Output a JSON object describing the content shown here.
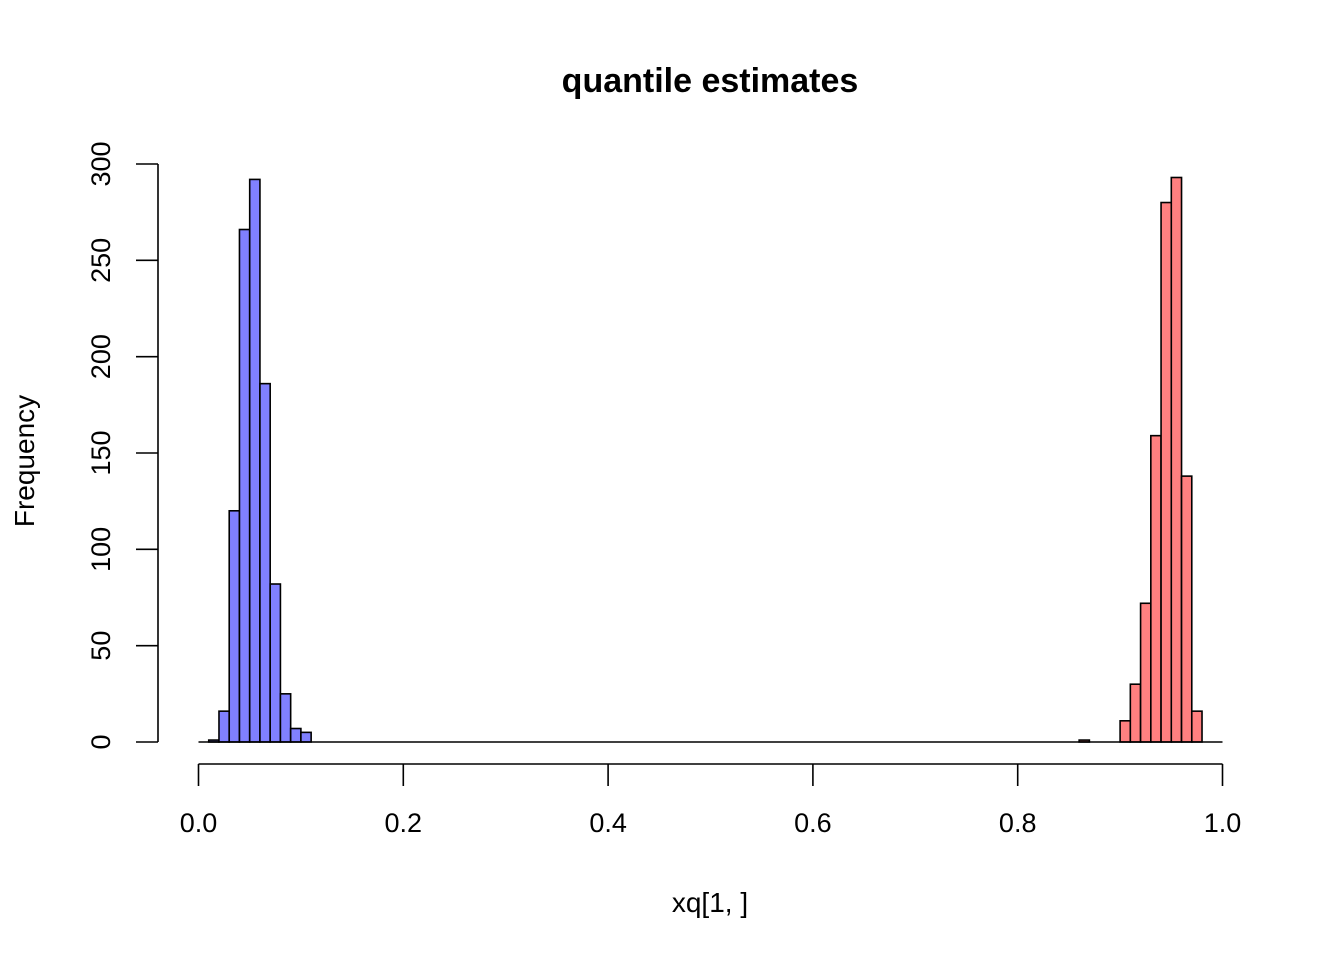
{
  "chart_data": {
    "type": "bar",
    "title": "quantile estimates",
    "xlabel": "xq[1, ]",
    "ylabel": "Frequency",
    "xlim": [
      0,
      1
    ],
    "ylim": [
      0,
      300
    ],
    "bin_width": 0.01,
    "x_ticks": [
      "0.0",
      "0.2",
      "0.4",
      "0.6",
      "0.8",
      "1.0"
    ],
    "y_ticks": [
      "0",
      "50",
      "100",
      "150",
      "200",
      "250",
      "300"
    ],
    "grid": false,
    "legend": "none",
    "series": [
      {
        "color": "#8080ff",
        "bins": [
          {
            "start": 0.01,
            "end": 0.02,
            "count": 1
          },
          {
            "start": 0.02,
            "end": 0.03,
            "count": 16
          },
          {
            "start": 0.03,
            "end": 0.04,
            "count": 120
          },
          {
            "start": 0.04,
            "end": 0.05,
            "count": 266
          },
          {
            "start": 0.05,
            "end": 0.06,
            "count": 292
          },
          {
            "start": 0.06,
            "end": 0.07,
            "count": 186
          },
          {
            "start": 0.07,
            "end": 0.08,
            "count": 82
          },
          {
            "start": 0.08,
            "end": 0.09,
            "count": 25
          },
          {
            "start": 0.09,
            "end": 0.1,
            "count": 7
          },
          {
            "start": 0.1,
            "end": 0.11,
            "count": 5
          }
        ]
      },
      {
        "color": "#ff8080",
        "bins": [
          {
            "start": 0.86,
            "end": 0.87,
            "count": 1
          },
          {
            "start": 0.9,
            "end": 0.91,
            "count": 11
          },
          {
            "start": 0.91,
            "end": 0.92,
            "count": 30
          },
          {
            "start": 0.92,
            "end": 0.93,
            "count": 72
          },
          {
            "start": 0.93,
            "end": 0.94,
            "count": 159
          },
          {
            "start": 0.94,
            "end": 0.95,
            "count": 280
          },
          {
            "start": 0.95,
            "end": 0.96,
            "count": 293
          },
          {
            "start": 0.96,
            "end": 0.97,
            "count": 138
          },
          {
            "start": 0.97,
            "end": 0.98,
            "count": 16
          }
        ]
      }
    ]
  }
}
